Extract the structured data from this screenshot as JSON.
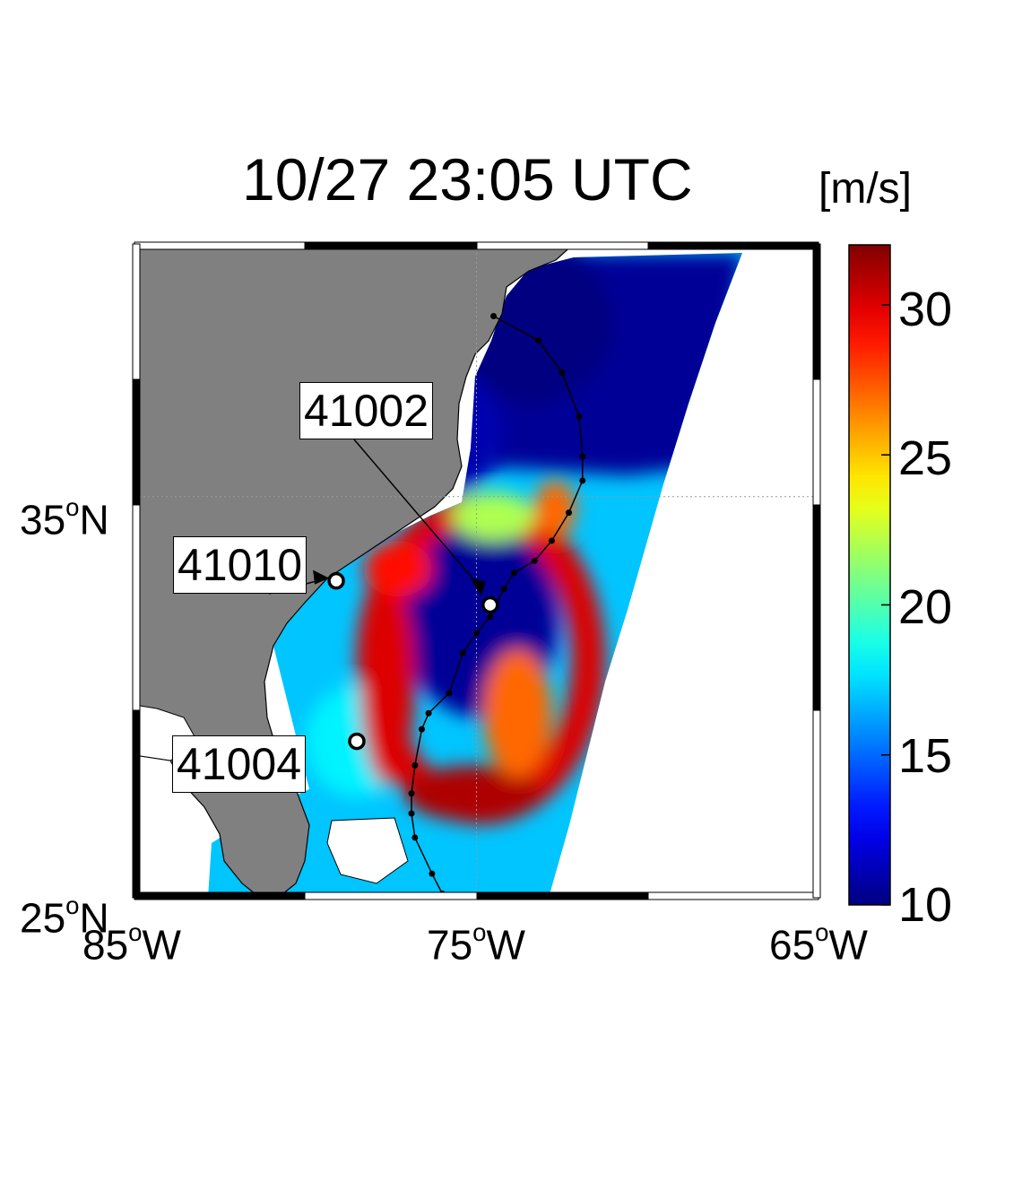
{
  "title": "10/27 23:05 UTC",
  "colorbar": {
    "units_label": "[m/s]",
    "ticks": [
      "10",
      "15",
      "20",
      "25",
      "30"
    ],
    "range": [
      10,
      32
    ],
    "colormap": "jet"
  },
  "map": {
    "lon_range": [
      -85,
      -65
    ],
    "lat_range": [
      25,
      41.3
    ],
    "land_color": "#808080",
    "ocean_no_data_color": "#ffffff",
    "lat_labels": [
      {
        "deg": "35",
        "hem": "N"
      },
      {
        "deg": "25",
        "hem": "N"
      }
    ],
    "lon_labels": [
      {
        "deg": "85",
        "hem": "W"
      },
      {
        "deg": "75",
        "hem": "W"
      },
      {
        "deg": "65",
        "hem": "W"
      }
    ],
    "graticule": {
      "lat": 35,
      "lon": -75
    }
  },
  "buoys": [
    {
      "id": "41002",
      "lon": -74.6,
      "lat": 32.3
    },
    {
      "id": "41010",
      "lon": -79.1,
      "lat": 32.9
    },
    {
      "id": "41004",
      "lon": -78.5,
      "lat": 28.9
    }
  ],
  "storm_track": [
    [
      -76.0,
      25.1
    ],
    [
      -76.3,
      25.6
    ],
    [
      -76.8,
      26.5
    ],
    [
      -76.9,
      27.1
    ],
    [
      -76.9,
      27.6
    ],
    [
      -76.8,
      28.3
    ],
    [
      -76.6,
      29.2
    ],
    [
      -76.4,
      29.6
    ],
    [
      -75.8,
      30.1
    ],
    [
      -75.4,
      31.1
    ],
    [
      -75.0,
      31.6
    ],
    [
      -74.6,
      32.0
    ],
    [
      -74.2,
      32.7
    ],
    [
      -73.9,
      33.1
    ],
    [
      -73.3,
      33.4
    ],
    [
      -72.8,
      33.9
    ],
    [
      -72.3,
      34.6
    ],
    [
      -71.9,
      35.4
    ],
    [
      -71.9,
      36.0
    ],
    [
      -72.0,
      37.0
    ],
    [
      -72.5,
      38.1
    ],
    [
      -73.2,
      38.9
    ],
    [
      -74.5,
      39.5
    ]
  ],
  "wind_features": [
    {
      "lon": -74.9,
      "lat": 31.9,
      "rx": 2.3,
      "ry": 2.4,
      "value": 10.5
    },
    {
      "lon": -78.5,
      "lat": 28.9,
      "rx": 1.5,
      "ry": 1.4,
      "value": 18
    },
    {
      "lon": -75.1,
      "lat": 27.6,
      "rx": 2.0,
      "ry": 0.7,
      "value": 31
    },
    {
      "lon": -77.6,
      "lat": 30.4,
      "rx": 0.8,
      "ry": 2.6,
      "value": 30
    },
    {
      "lon": -77.3,
      "lat": 33.2,
      "rx": 1.0,
      "ry": 0.7,
      "value": 29
    },
    {
      "lon": -73.8,
      "lat": 29.6,
      "rx": 1.0,
      "ry": 1.6,
      "value": 27
    },
    {
      "lon": -72.7,
      "lat": 34.7,
      "rx": 0.6,
      "ry": 0.7,
      "value": 27
    },
    {
      "lon": -74.5,
      "lat": 34.5,
      "rx": 1.2,
      "ry": 0.6,
      "value": 22
    },
    {
      "lon": -73.5,
      "lat": 39.3,
      "rx": 2.5,
      "ry": 2.0,
      "value": 10
    },
    {
      "lon": -75.7,
      "lat": 36.6,
      "rx": 1.5,
      "ry": 1.5,
      "value": 11
    }
  ]
}
